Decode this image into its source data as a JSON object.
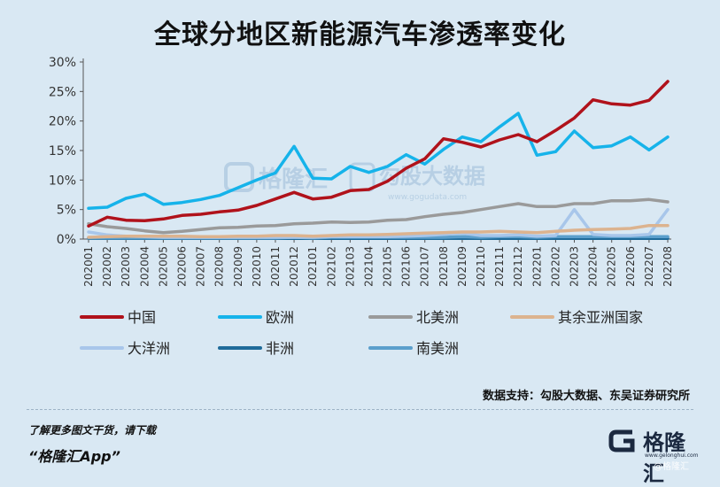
{
  "title": "全球分地区新能源汽车渗透率变化",
  "source": "数据支持：勾股大数据、东吴证券研究所",
  "promo": {
    "line1": "了解更多图文干货，请下载",
    "line2": "“格隆汇App”"
  },
  "brand": {
    "name": "格隆汇",
    "url": "www.gelonghui.com",
    "tag": "@格隆汇"
  },
  "watermark": {
    "name": "格隆汇",
    "name2": "勾股大数据",
    "url": "www.gogudata.com"
  },
  "colors": {
    "background": "#d9e8f3",
    "中国": "#b0121b",
    "欧洲": "#16b3ea",
    "北美洲": "#9a9a9a",
    "其余亚洲国家": "#dcb38f",
    "大洋洲": "#a8c6ea",
    "非洲": "#1f6b9a",
    "南美洲": "#5b9fcc"
  },
  "chart_data": {
    "type": "line",
    "title": "全球分地区新能源汽车渗透率变化",
    "ylim": [
      0,
      30
    ],
    "yticks": [
      "0%",
      "5%",
      "10%",
      "15%",
      "20%",
      "25%",
      "30%"
    ],
    "grid": false,
    "legend_placement": "bottom",
    "categories": [
      "202001",
      "202002",
      "202003",
      "202004",
      "202005",
      "202006",
      "202007",
      "202008",
      "202009",
      "202010",
      "202011",
      "202012",
      "202101",
      "202102",
      "202103",
      "202104",
      "202105",
      "202106",
      "202107",
      "202108",
      "202109",
      "202110",
      "202111",
      "202112",
      "202201",
      "202202",
      "202203",
      "202204",
      "202205",
      "202206",
      "202207",
      "202208"
    ],
    "series": [
      {
        "name": "中国",
        "values": [
          2.2,
          3.7,
          3.2,
          3.1,
          3.4,
          4.0,
          4.2,
          4.6,
          4.9,
          5.7,
          6.8,
          7.9,
          6.8,
          7.1,
          8.2,
          8.4,
          9.8,
          12.0,
          13.6,
          17.0,
          16.4,
          15.6,
          16.8,
          17.7,
          16.5,
          18.4,
          20.5,
          23.6,
          22.9,
          22.7,
          23.5,
          26.7
        ]
      },
      {
        "name": "欧洲",
        "values": [
          5.2,
          5.4,
          6.9,
          7.6,
          5.9,
          6.2,
          6.7,
          7.4,
          8.7,
          10.0,
          11.2,
          15.7,
          10.3,
          10.2,
          12.3,
          11.3,
          12.3,
          14.3,
          12.7,
          15.2,
          17.3,
          16.5,
          19.0,
          21.3,
          14.2,
          14.8,
          18.3,
          15.5,
          15.8,
          17.3,
          15.1,
          17.3
        ]
      },
      {
        "name": "北美洲",
        "values": [
          2.6,
          2.1,
          1.8,
          1.4,
          1.1,
          1.3,
          1.6,
          1.9,
          2.0,
          2.2,
          2.3,
          2.6,
          2.7,
          2.9,
          2.8,
          2.9,
          3.2,
          3.3,
          3.8,
          4.2,
          4.5,
          5.0,
          5.5,
          6.0,
          5.5,
          5.5,
          6.0,
          6.0,
          6.5,
          6.5,
          6.7,
          6.3
        ]
      },
      {
        "name": "其余亚洲国家",
        "values": [
          0.3,
          0.4,
          0.5,
          0.5,
          0.5,
          0.5,
          0.4,
          0.4,
          0.5,
          0.5,
          0.6,
          0.6,
          0.5,
          0.6,
          0.7,
          0.7,
          0.8,
          0.9,
          1.0,
          1.1,
          1.2,
          1.2,
          1.3,
          1.2,
          1.1,
          1.3,
          1.5,
          1.6,
          1.7,
          1.8,
          2.3,
          2.3
        ]
      },
      {
        "name": "大洋洲",
        "values": [
          1.2,
          0.7,
          0.5,
          0.4,
          0.3,
          0.3,
          0.3,
          0.3,
          0.3,
          0.3,
          0.3,
          0.3,
          0.3,
          0.4,
          0.4,
          0.4,
          0.4,
          0.5,
          0.6,
          0.8,
          1.0,
          0.6,
          0.6,
          0.7,
          0.5,
          0.6,
          5.0,
          0.8,
          0.6,
          0.6,
          0.8,
          5.0
        ]
      },
      {
        "name": "非洲",
        "values": [
          0.1,
          0.1,
          0.1,
          0.1,
          0.1,
          0.1,
          0.1,
          0.1,
          0.1,
          0.1,
          0.1,
          0.1,
          0.1,
          0.1,
          0.1,
          0.1,
          0.1,
          0.1,
          0.1,
          0.1,
          0.1,
          0.1,
          0.1,
          0.1,
          0.1,
          0.1,
          0.1,
          0.1,
          0.1,
          0.1,
          0.1,
          0.1
        ]
      },
      {
        "name": "南美洲",
        "values": [
          0.2,
          0.2,
          0.2,
          0.2,
          0.2,
          0.2,
          0.2,
          0.2,
          0.2,
          0.2,
          0.2,
          0.3,
          0.2,
          0.3,
          0.3,
          0.3,
          0.3,
          0.3,
          0.3,
          0.3,
          0.4,
          0.3,
          0.4,
          0.4,
          0.3,
          0.4,
          0.4,
          0.4,
          0.4,
          0.4,
          0.4,
          0.4
        ]
      }
    ]
  }
}
